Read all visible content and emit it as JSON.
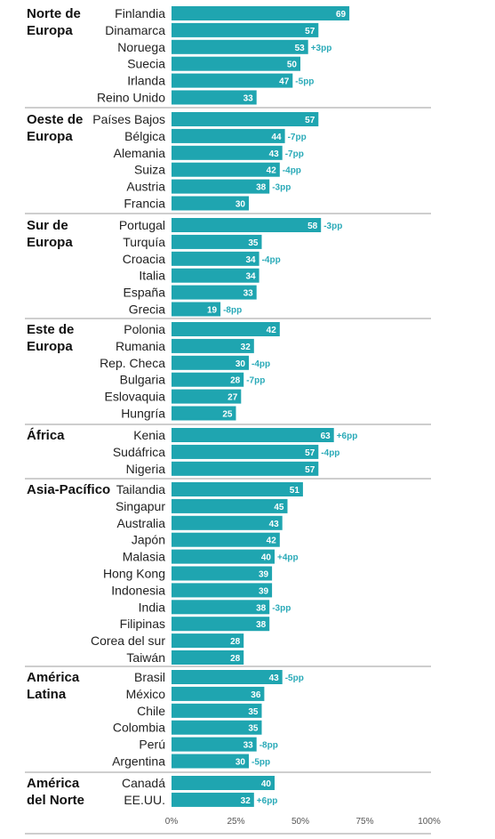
{
  "chart_data": {
    "type": "bar",
    "orientation": "horizontal",
    "bar_color": "#1fa5b0",
    "change_color": "#2aaab8",
    "xlim": [
      0,
      100
    ],
    "xticks": [
      "0%",
      "25%",
      "50%",
      "75%",
      "100%"
    ],
    "groups": [
      {
        "region": "Norte de\nEuropa",
        "items": [
          {
            "country": "Finlandia",
            "value": 69,
            "change": ""
          },
          {
            "country": "Dinamarca",
            "value": 57,
            "change": ""
          },
          {
            "country": "Noruega",
            "value": 53,
            "change": "+3pp"
          },
          {
            "country": "Suecia",
            "value": 50,
            "change": ""
          },
          {
            "country": "Irlanda",
            "value": 47,
            "change": "-5pp"
          },
          {
            "country": "Reino Unido",
            "value": 33,
            "change": ""
          }
        ]
      },
      {
        "region": "Oeste de\nEuropa",
        "items": [
          {
            "country": "Países Bajos",
            "value": 57,
            "change": ""
          },
          {
            "country": "Bélgica",
            "value": 44,
            "change": "-7pp"
          },
          {
            "country": "Alemania",
            "value": 43,
            "change": "-7pp"
          },
          {
            "country": "Suiza",
            "value": 42,
            "change": "-4pp"
          },
          {
            "country": "Austria",
            "value": 38,
            "change": "-3pp"
          },
          {
            "country": "Francia",
            "value": 30,
            "change": ""
          }
        ]
      },
      {
        "region": "Sur de\nEuropa",
        "items": [
          {
            "country": "Portugal",
            "value": 58,
            "change": "-3pp"
          },
          {
            "country": "Turquía",
            "value": 35,
            "change": ""
          },
          {
            "country": "Croacia",
            "value": 34,
            "change": "-4pp"
          },
          {
            "country": "Italia",
            "value": 34,
            "change": ""
          },
          {
            "country": "España",
            "value": 33,
            "change": ""
          },
          {
            "country": "Grecia",
            "value": 19,
            "change": "-8pp"
          }
        ]
      },
      {
        "region": "Este de\nEuropa",
        "items": [
          {
            "country": "Polonia",
            "value": 42,
            "change": ""
          },
          {
            "country": "Rumania",
            "value": 32,
            "change": ""
          },
          {
            "country": "Rep. Checa",
            "value": 30,
            "change": "-4pp"
          },
          {
            "country": "Bulgaria",
            "value": 28,
            "change": "-7pp"
          },
          {
            "country": "Eslovaquia",
            "value": 27,
            "change": ""
          },
          {
            "country": "Hungría",
            "value": 25,
            "change": ""
          }
        ]
      },
      {
        "region": "África",
        "items": [
          {
            "country": "Kenia",
            "value": 63,
            "change": "+6pp"
          },
          {
            "country": "Sudáfrica",
            "value": 57,
            "change": "-4pp"
          },
          {
            "country": "Nigeria",
            "value": 57,
            "change": ""
          }
        ]
      },
      {
        "region": "Asia-Pacífico",
        "items": [
          {
            "country": "Tailandia",
            "value": 51,
            "change": ""
          },
          {
            "country": "Singapur",
            "value": 45,
            "change": ""
          },
          {
            "country": "Australia",
            "value": 43,
            "change": ""
          },
          {
            "country": "Japón",
            "value": 42,
            "change": ""
          },
          {
            "country": "Malasia",
            "value": 40,
            "change": "+4pp"
          },
          {
            "country": "Hong Kong",
            "value": 39,
            "change": ""
          },
          {
            "country": "Indonesia",
            "value": 39,
            "change": ""
          },
          {
            "country": "India",
            "value": 38,
            "change": "-3pp"
          },
          {
            "country": "Filipinas",
            "value": 38,
            "change": ""
          },
          {
            "country": "Corea del sur",
            "value": 28,
            "change": ""
          },
          {
            "country": "Taiwán",
            "value": 28,
            "change": ""
          }
        ]
      },
      {
        "region": "América\nLatina",
        "items": [
          {
            "country": "Brasil",
            "value": 43,
            "change": "-5pp"
          },
          {
            "country": "México",
            "value": 36,
            "change": ""
          },
          {
            "country": "Chile",
            "value": 35,
            "change": ""
          },
          {
            "country": "Colombia",
            "value": 35,
            "change": ""
          },
          {
            "country": "Perú",
            "value": 33,
            "change": "-8pp"
          },
          {
            "country": "Argentina",
            "value": 30,
            "change": "-5pp"
          }
        ]
      },
      {
        "region": "América\ndel Norte",
        "items": [
          {
            "country": "Canadá",
            "value": 40,
            "change": ""
          },
          {
            "country": "EE.UU.",
            "value": 32,
            "change": "+6pp"
          }
        ]
      }
    ]
  }
}
